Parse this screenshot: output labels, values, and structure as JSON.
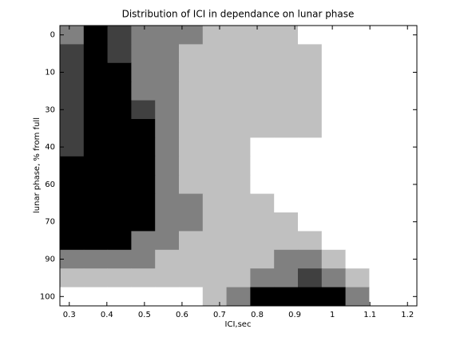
{
  "chart_data": {
    "type": "heatmap",
    "title": "Distribution of ICI in dependance on lunar phase",
    "x_label": "ICI,sec",
    "y_label": "lunar phase, % from full",
    "xlim": [
      0.275,
      1.225
    ],
    "xticks": [
      0.3,
      0.4,
      0.5,
      0.6,
      0.7,
      0.8,
      0.9,
      1,
      1.1,
      1.2
    ],
    "y_categories": [
      0,
      null,
      10,
      null,
      30,
      null,
      40,
      null,
      60,
      null,
      70,
      null,
      90,
      null,
      100
    ],
    "colormap": [
      "#ffffff",
      "#c0c0c0",
      "#808080",
      "#404040",
      "#000000"
    ],
    "z": [
      [
        2,
        4,
        3,
        2,
        2,
        2,
        1,
        1,
        1,
        1,
        0,
        0,
        0,
        0,
        0
      ],
      [
        3,
        4,
        3,
        2,
        2,
        1,
        1,
        1,
        1,
        1,
        1,
        0,
        0,
        0,
        0
      ],
      [
        3,
        4,
        4,
        2,
        2,
        1,
        1,
        1,
        1,
        1,
        1,
        0,
        0,
        0,
        0
      ],
      [
        3,
        4,
        4,
        2,
        2,
        1,
        1,
        1,
        1,
        1,
        1,
        0,
        0,
        0,
        0
      ],
      [
        3,
        4,
        4,
        3,
        2,
        1,
        1,
        1,
        1,
        1,
        1,
        0,
        0,
        0,
        0
      ],
      [
        3,
        4,
        4,
        4,
        2,
        1,
        1,
        1,
        1,
        1,
        1,
        0,
        0,
        0,
        0
      ],
      [
        3,
        4,
        4,
        4,
        2,
        1,
        1,
        1,
        0,
        0,
        0,
        0,
        0,
        0,
        0
      ],
      [
        4,
        4,
        4,
        4,
        2,
        1,
        1,
        1,
        0,
        0,
        0,
        0,
        0,
        0,
        0
      ],
      [
        4,
        4,
        4,
        4,
        2,
        1,
        1,
        1,
        0,
        0,
        0,
        0,
        0,
        0,
        0
      ],
      [
        4,
        4,
        4,
        4,
        2,
        2,
        1,
        1,
        1,
        0,
        0,
        0,
        0,
        0,
        0
      ],
      [
        4,
        4,
        4,
        4,
        2,
        2,
        1,
        1,
        1,
        1,
        0,
        0,
        0,
        0,
        0
      ],
      [
        4,
        4,
        4,
        2,
        2,
        1,
        1,
        1,
        1,
        1,
        1,
        0,
        0,
        0,
        0
      ],
      [
        2,
        2,
        2,
        2,
        1,
        1,
        1,
        1,
        1,
        2,
        2,
        1,
        0,
        0,
        0
      ],
      [
        1,
        1,
        1,
        1,
        1,
        1,
        1,
        1,
        2,
        2,
        3,
        2,
        1,
        0,
        0
      ],
      [
        0,
        0,
        0,
        0,
        0,
        0,
        1,
        2,
        4,
        4,
        4,
        4,
        2,
        0,
        0
      ]
    ]
  }
}
